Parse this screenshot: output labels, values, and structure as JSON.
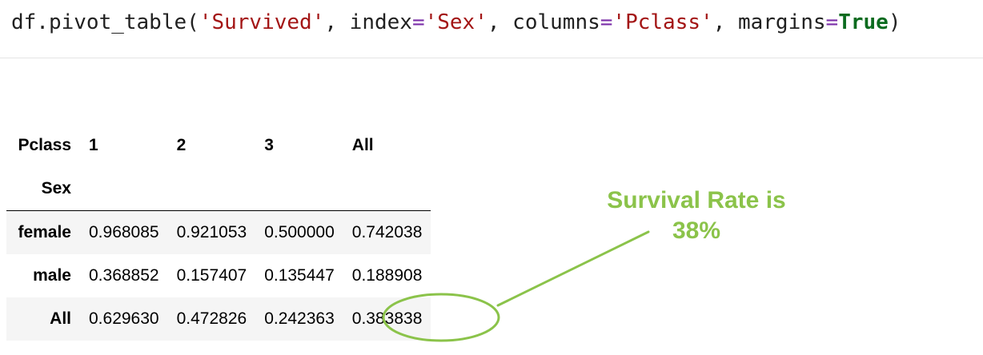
{
  "code": {
    "p1": "df.pivot_table(",
    "s1": "'Survived'",
    "p2": ", index",
    "eq1": "=",
    "s2": "'Sex'",
    "p3": ", columns",
    "eq2": "=",
    "s3": "'Pclass'",
    "p4": ", margins",
    "eq3": "=",
    "kw": "True",
    "p5": ")"
  },
  "table": {
    "columns_name": "Pclass",
    "index_name": "Sex",
    "columns": [
      "1",
      "2",
      "3",
      "All"
    ],
    "rows": [
      {
        "label": "female",
        "values": [
          "0.968085",
          "0.921053",
          "0.500000",
          "0.742038"
        ]
      },
      {
        "label": "male",
        "values": [
          "0.368852",
          "0.157407",
          "0.135447",
          "0.188908"
        ]
      },
      {
        "label": "All",
        "values": [
          "0.629630",
          "0.472826",
          "0.242363",
          "0.383838"
        ]
      }
    ]
  },
  "annotation": {
    "line1": "Survival Rate is",
    "line2": "38%",
    "color": "#8bc34a"
  }
}
